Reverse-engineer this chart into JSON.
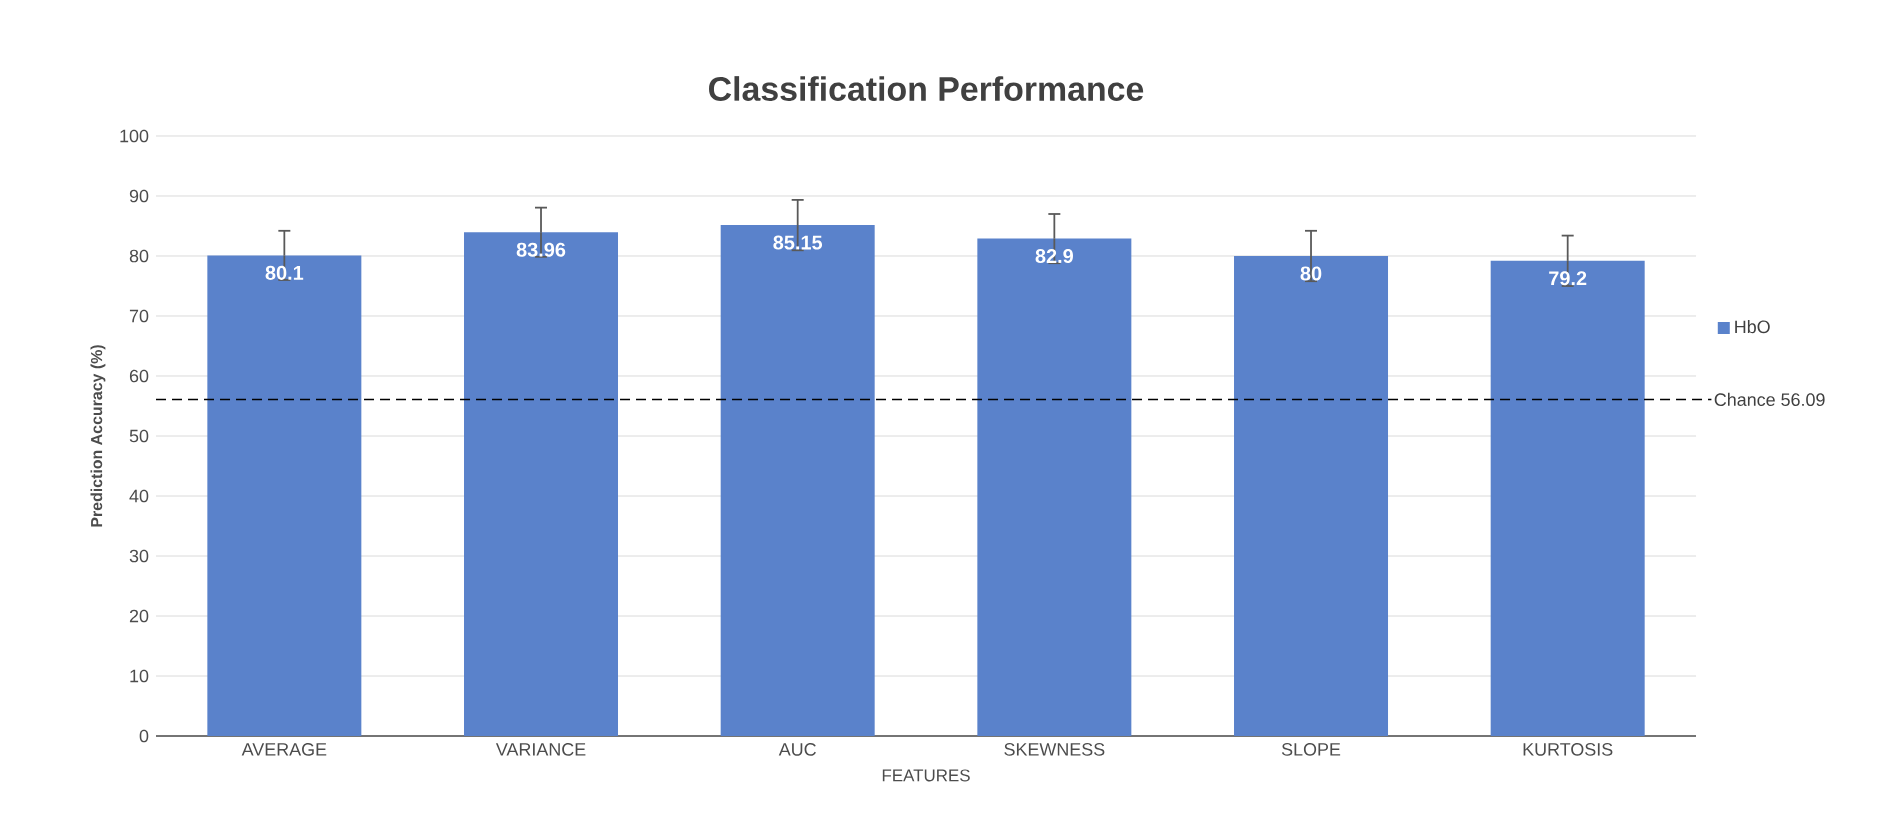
{
  "chart_data": {
    "type": "bar",
    "title": "Classification Performance",
    "xlabel": "FEATURES",
    "ylabel": "Prediction Accuracy (%)",
    "categories": [
      "AVERAGE",
      "VARIANCE",
      "AUC",
      "SKEWNESS",
      "SLOPE",
      "KURTOSIS"
    ],
    "series": [
      {
        "name": "HbO",
        "color": "#5a82cb",
        "values": [
          80.1,
          83.96,
          85.15,
          82.9,
          80,
          79.2
        ],
        "errors": [
          4.1,
          4.1,
          4.2,
          4.1,
          4.2,
          4.2
        ]
      }
    ],
    "data_labels": true,
    "ylim": [
      0,
      100
    ],
    "yticks": [
      0,
      10,
      20,
      30,
      40,
      50,
      60,
      70,
      80,
      90,
      100
    ],
    "grid": "y",
    "legend": "right",
    "ref_lines": [
      {
        "axis": "y",
        "value": 56.09,
        "label": "Chance 56.09",
        "line_style": "dashed",
        "color": "#000000"
      }
    ]
  }
}
